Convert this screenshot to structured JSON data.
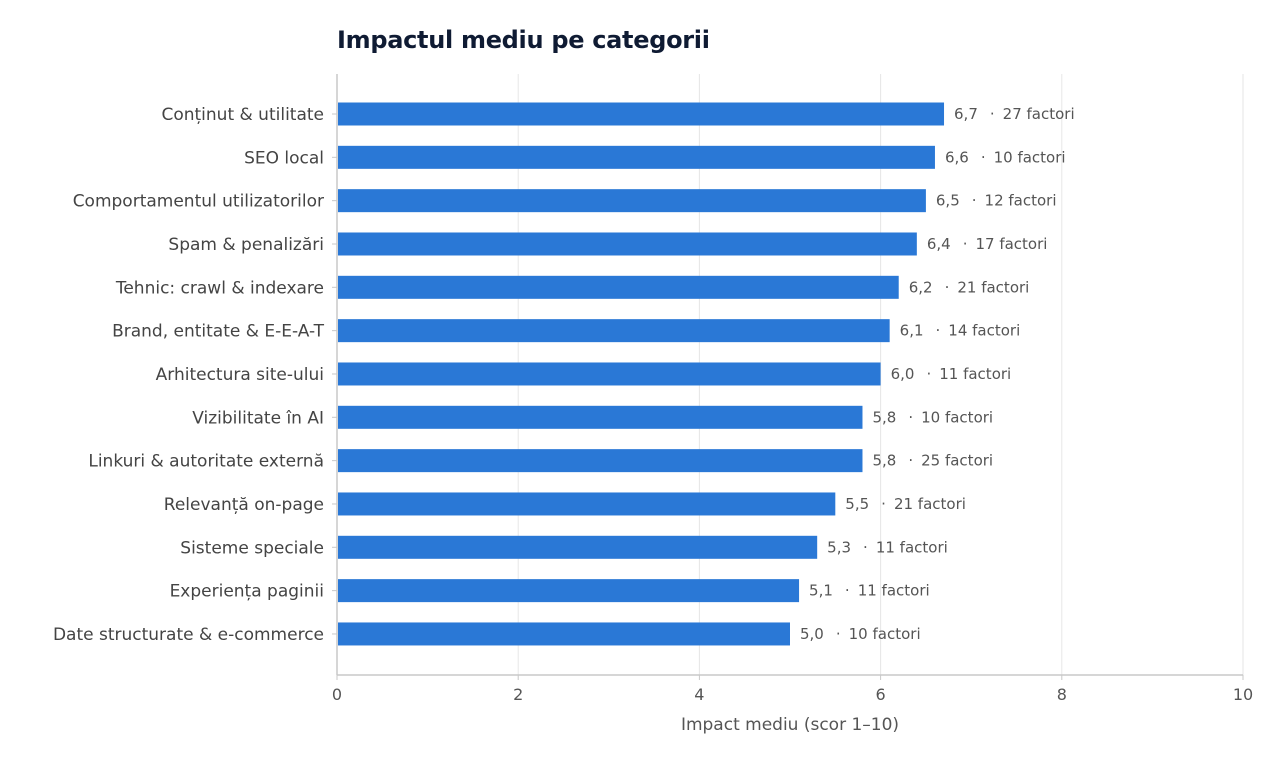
{
  "chart_data": {
    "type": "bar",
    "orientation": "horizontal",
    "title": "Impactul mediu pe categorii",
    "xlabel": "Impact mediu (scor 1–10)",
    "ylabel": "",
    "xlim": [
      0,
      10
    ],
    "xticks": [
      "0",
      "2",
      "4",
      "6",
      "8",
      "10"
    ],
    "grid": true,
    "bar_color": "#2a78d6",
    "categories": [
      "Conținut & utilitate",
      "SEO local",
      "Comportamentul utilizatorilor",
      "Spam & penalizări",
      "Tehnic: crawl & indexare",
      "Brand, entitate & E-E-A-T",
      "Arhitectura site-ului",
      "Vizibilitate în AI",
      "Linkuri & autoritate externă",
      "Relevanță on-page",
      "Sisteme speciale",
      "Experiența paginii",
      "Date structurate & e-commerce"
    ],
    "values": [
      6.7,
      6.6,
      6.5,
      6.4,
      6.2,
      6.1,
      6.0,
      5.8,
      5.8,
      5.5,
      5.3,
      5.1,
      5.0
    ],
    "value_labels": [
      "6,7",
      "6,6",
      "6,5",
      "6,4",
      "6,2",
      "6,1",
      "6,0",
      "5,8",
      "5,8",
      "5,5",
      "5,3",
      "5,1",
      "5,0"
    ],
    "factor_labels": [
      "27 factori",
      "10 factori",
      "12 factori",
      "17 factori",
      "21 factori",
      "14 factori",
      "11 factori",
      "10 factori",
      "25 factori",
      "21 factori",
      "11 factori",
      "11 factori",
      "10 factori"
    ]
  }
}
